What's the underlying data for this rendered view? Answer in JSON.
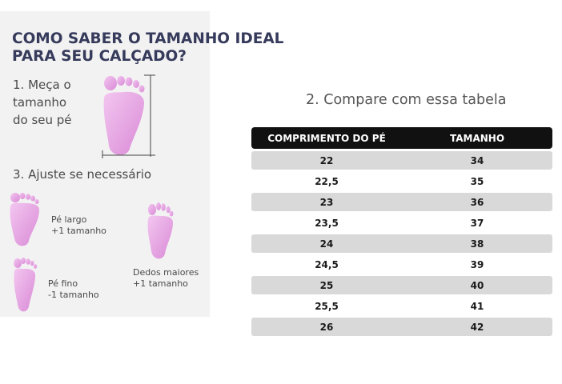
{
  "left": {
    "title_line1": "COMO SABER O TAMANHO IDEAL",
    "title_line2": "PARA SEU CALÇADO?",
    "step1_line1": "1. Meça o",
    "step1_line2": "tamanho",
    "step1_line3": "do seu pé",
    "step3": "3. Ajuste se necessário",
    "wide_line1": "Pé largo",
    "wide_line2": "+1 tamanho",
    "toes_line1": "Dedos maiores",
    "toes_line2": "+1 tamanho",
    "thin_line1": "Pé fino",
    "thin_line2": "-1 tamanho",
    "foot_icon": "foot-icon",
    "foot_color": "#e8a6e4"
  },
  "right": {
    "compare_title": "2. Compare com essa tabela",
    "header": {
      "col1": "COMPRIMENTO DO PÉ",
      "col2": "TAMANHO"
    },
    "rows": [
      {
        "length": "22",
        "size": "34"
      },
      {
        "length": "22,5",
        "size": "35"
      },
      {
        "length": "23",
        "size": "36"
      },
      {
        "length": "23,5",
        "size": "37"
      },
      {
        "length": "24",
        "size": "38"
      },
      {
        "length": "24,5",
        "size": "39"
      },
      {
        "length": "25",
        "size": "40"
      },
      {
        "length": "25,5",
        "size": "41"
      },
      {
        "length": "26",
        "size": "42"
      }
    ],
    "header_color": "#111111",
    "shaded_row_color": "#d9d9d9"
  }
}
